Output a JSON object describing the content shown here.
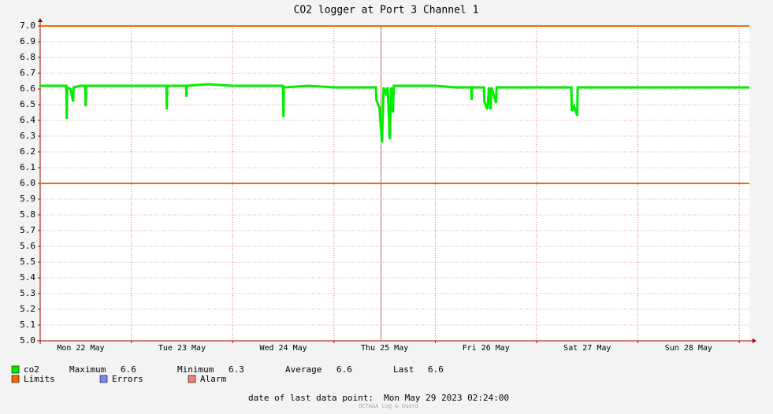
{
  "chart_data": {
    "type": "line",
    "title": "CO2 logger at Port 3 Channel 1",
    "ylim": [
      5,
      7
    ],
    "yticks": [
      {
        "value": 5,
        "label": "5.0"
      },
      5.1,
      5.2,
      5.3,
      5.4,
      5.5,
      5.6,
      5.7,
      5.8,
      5.9,
      {
        "value": 6,
        "label": "6.0"
      },
      6.1,
      6.2,
      6.3,
      6.4,
      6.5,
      6.6,
      6.7,
      6.8,
      6.9,
      {
        "value": 7,
        "label": "7.0"
      }
    ],
    "xlim": [
      22.1,
      29.1
    ],
    "xticks": [
      {
        "value": 22.5,
        "label": "Mon 22 May"
      },
      {
        "value": 23.5,
        "label": "Tue 23 May"
      },
      {
        "value": 24.5,
        "label": "Wed 24 May"
      },
      {
        "value": 25.5,
        "label": "Thu 25 May"
      },
      {
        "value": 26.5,
        "label": "Fri 26 May"
      },
      {
        "value": 27.5,
        "label": "Sat 27 May"
      },
      {
        "value": 28.5,
        "label": "Sun 28 May"
      }
    ],
    "xgrid": [
      23,
      24,
      25,
      26,
      27,
      28,
      29
    ],
    "grid": true,
    "markers": [
      25.465
    ],
    "series": [
      {
        "name": "co2",
        "color": "#00ee00",
        "x": [
          22.1,
          22.2,
          22.3,
          22.358,
          22.362,
          22.366,
          22.4,
          22.425,
          22.43,
          22.5,
          22.545,
          22.549,
          22.553,
          22.7,
          22.9,
          23.1,
          23.3,
          23.346,
          23.35,
          23.354,
          23.54,
          23.544,
          23.548,
          23.75,
          24.0,
          24.25,
          24.497,
          24.501,
          24.505,
          24.75,
          25.0,
          25.25,
          25.414,
          25.418,
          25.449,
          25.473,
          25.49,
          25.512,
          25.53,
          25.551,
          25.565,
          25.582,
          25.59,
          25.8,
          26.0,
          26.2,
          26.355,
          26.359,
          26.363,
          26.48,
          26.484,
          26.515,
          26.53,
          26.546,
          26.555,
          26.6,
          26.605,
          26.8,
          27.0,
          27.2,
          27.343,
          27.347,
          27.37,
          27.401,
          27.405,
          27.6,
          27.8,
          28.0,
          28.2,
          28.4,
          28.6,
          28.8,
          29.0,
          29.1
        ],
        "values": [
          6.62,
          6.62,
          6.62,
          6.62,
          6.41,
          6.61,
          6.6,
          6.52,
          6.61,
          6.62,
          6.62,
          6.49,
          6.62,
          6.62,
          6.62,
          6.62,
          6.62,
          6.62,
          6.47,
          6.62,
          6.62,
          6.55,
          6.62,
          6.63,
          6.62,
          6.62,
          6.62,
          6.42,
          6.61,
          6.62,
          6.61,
          6.61,
          6.61,
          6.53,
          6.48,
          6.26,
          6.61,
          6.57,
          6.61,
          6.28,
          6.61,
          6.45,
          6.62,
          6.62,
          6.62,
          6.61,
          6.61,
          6.53,
          6.61,
          6.61,
          6.52,
          6.47,
          6.61,
          6.47,
          6.61,
          6.51,
          6.61,
          6.61,
          6.61,
          6.61,
          6.61,
          6.46,
          6.49,
          6.43,
          6.61,
          6.61,
          6.61,
          6.61,
          6.61,
          6.61,
          6.61,
          6.61,
          6.61,
          6.61
        ]
      }
    ],
    "limits": {
      "name": "Limits",
      "color": "#f26a00",
      "values": [
        6,
        7
      ]
    },
    "legend_only": [
      {
        "name": "Errors",
        "color": "#7c88f0"
      },
      {
        "name": "Alarm",
        "color": "#f07c7c"
      }
    ],
    "stats": [
      {
        "label": "Maximum",
        "value": 6.6
      },
      {
        "label": "Minimum",
        "value": 6.3
      },
      {
        "label": "Average",
        "value": 6.6
      },
      {
        "label": "Last",
        "value": 6.6
      }
    ],
    "footer": "date of last data point:  Mon May 29 2023 02:24:00",
    "watermark": "OCTA&A Log & Guard"
  }
}
